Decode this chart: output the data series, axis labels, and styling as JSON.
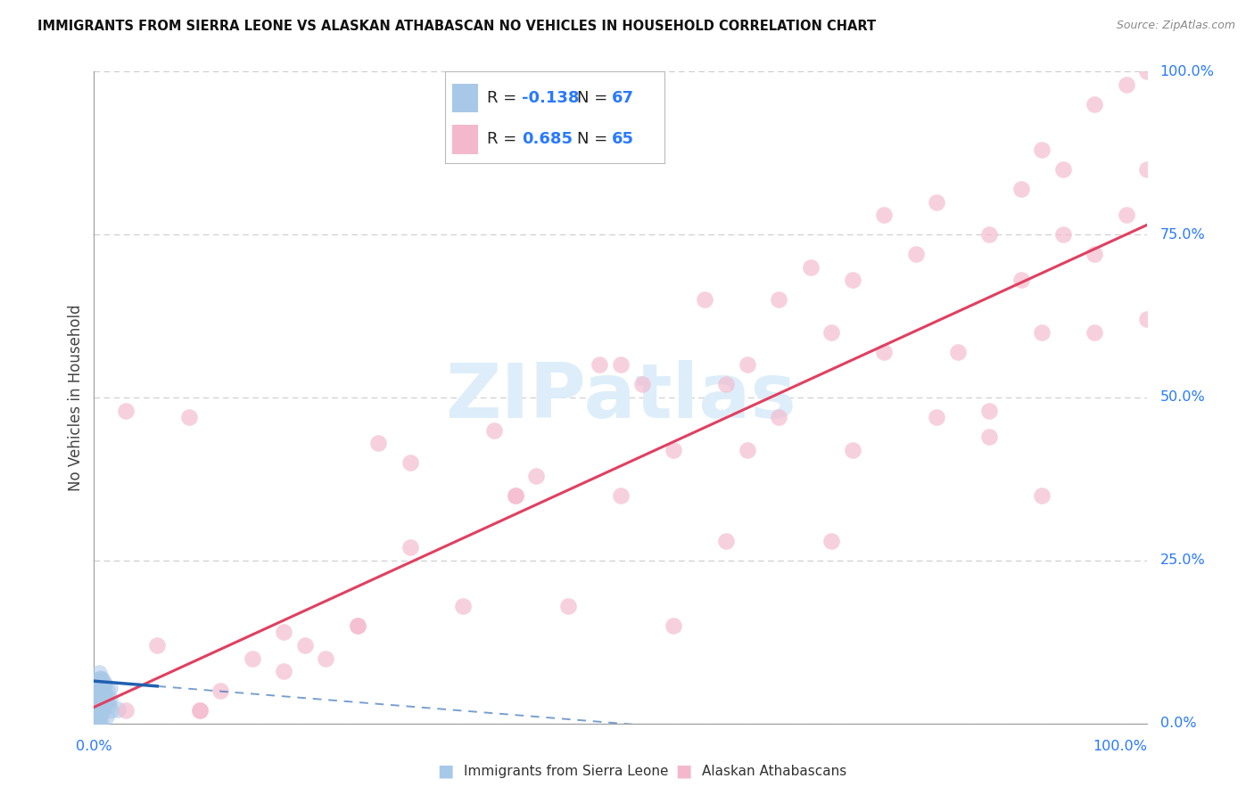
{
  "title": "IMMIGRANTS FROM SIERRA LEONE VS ALASKAN ATHABASCAN NO VEHICLES IN HOUSEHOLD CORRELATION CHART",
  "source": "Source: ZipAtlas.com",
  "ylabel": "No Vehicles in Household",
  "ytick_labels": [
    "0.0%",
    "25.0%",
    "50.0%",
    "75.0%",
    "100.0%"
  ],
  "ytick_values": [
    0.0,
    0.25,
    0.5,
    0.75,
    1.0
  ],
  "legend_label1": "Immigrants from Sierra Leone",
  "legend_label2": "Alaskan Athabascans",
  "R1": -0.138,
  "N1": 67,
  "R2": 0.685,
  "N2": 65,
  "color_blue": "#a8c8e8",
  "color_pink": "#f4b8cc",
  "color_blue_line": "#2060b0",
  "color_pink_line": "#e04060",
  "color_label": "#2979FF",
  "watermark_color": "#ddeefa",
  "grid_color": "#cccccc",
  "pink_slope": 0.74,
  "pink_intercept": 0.025,
  "blue_slope": -0.13,
  "blue_intercept": 0.065
}
